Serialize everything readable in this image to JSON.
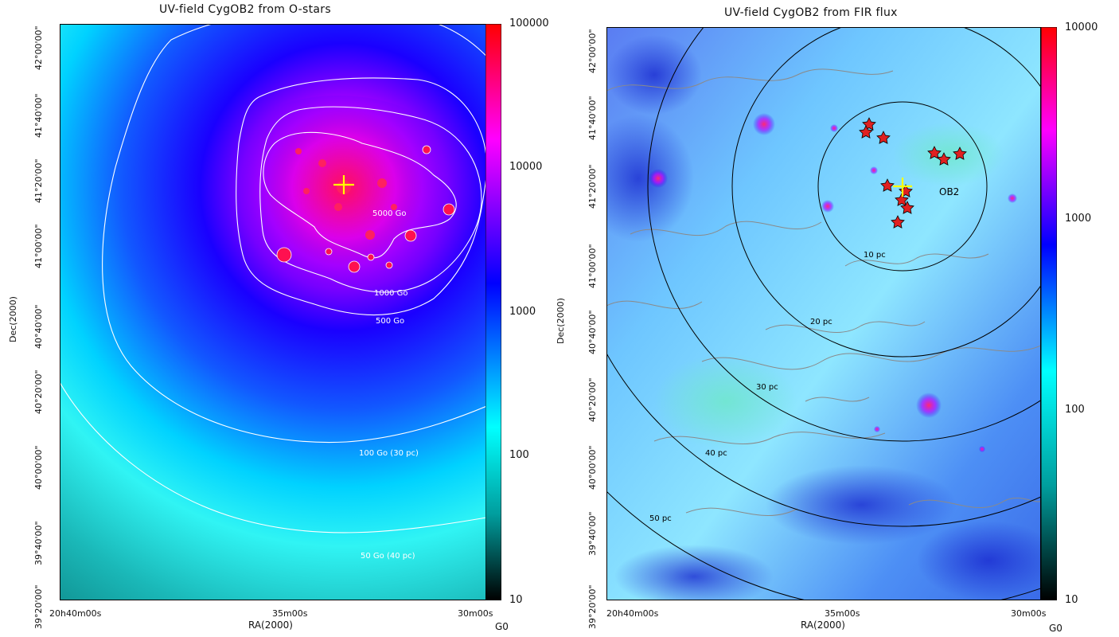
{
  "left_panel": {
    "title": "UV-field CygOB2 from O-stars",
    "xlabel": "RA(2000)",
    "ylabel": "Dec(2000)",
    "x_ticks": [
      "20h40m00s",
      "35m00s",
      "30m00s"
    ],
    "y_ticks": [
      "42°00'00\"",
      "41°40'00\"",
      "41°20'00\"",
      "41°00'00\"",
      "40°40'00\"",
      "40°20'00\"",
      "40°00'00\"",
      "39°40'00\"",
      "39°20'00\""
    ],
    "colorbar_ticks": [
      "100000",
      "10000",
      "1000",
      "100",
      "10"
    ],
    "colorbar_unit": "G0",
    "contour_labels": [
      "5000 Go",
      "1000 Go",
      "500 Go",
      "100 Go (30 pc)",
      "50 Go (40 pc)"
    ]
  },
  "right_panel": {
    "title": "UV-field CygOB2 from FIR flux",
    "xlabel": "RA(2000)",
    "ylabel": "Dec(2000)",
    "x_ticks": [
      "20h40m00s",
      "35m00s",
      "30m00s"
    ],
    "y_ticks": [
      "42°00'00\"",
      "41°40'00\"",
      "41°20'00\"",
      "41°00'00\"",
      "40°40'00\"",
      "40°20'00\"",
      "40°00'00\"",
      "39°40'00\"",
      "39°20'00\""
    ],
    "colorbar_ticks": [
      "10000",
      "1000",
      "100",
      "10"
    ],
    "colorbar_unit": "G0",
    "circle_labels": [
      "10 pc",
      "20 pc",
      "30 pc",
      "40 pc",
      "50 pc"
    ],
    "cluster_label": "OB2"
  },
  "colors": {
    "colormap": [
      "#000000",
      "#009e9e",
      "#00ffff",
      "#0000ff",
      "#ff00ff",
      "#ff0000"
    ],
    "contour_left": "#ffffff",
    "circles_right": "#000000",
    "contours_right": "#8a8a8a",
    "center_marker": "#ffff00",
    "star_marker": "#e02020"
  }
}
